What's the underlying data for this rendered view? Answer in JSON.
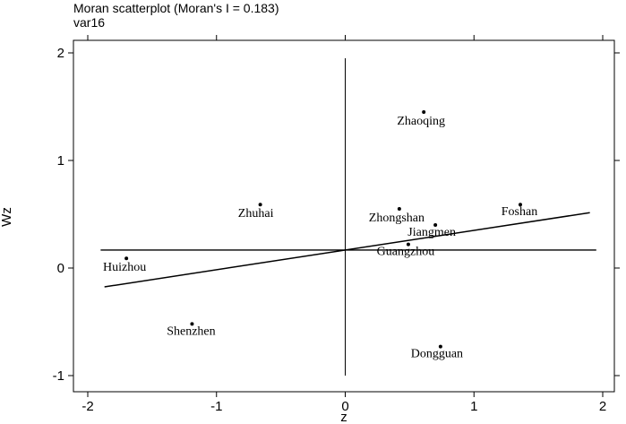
{
  "chart_data": {
    "type": "scatter",
    "title": "Moran scatterplot (Moran's I = 0.183)",
    "subtitle": "var16",
    "xlabel": "z",
    "ylabel": "Wz",
    "xlim": [
      -2.05,
      2.05
    ],
    "ylim": [
      -1.1,
      2.1
    ],
    "xticks": [
      -2,
      -1,
      0,
      1,
      2
    ],
    "yticks": [
      -1,
      0,
      1,
      2
    ],
    "xtick_labels": [
      "-2",
      "-1",
      "0",
      "1",
      "2"
    ],
    "ytick_labels": [
      "-1",
      "0",
      "1",
      "2"
    ],
    "grid": false,
    "points": [
      {
        "label": "Zhaoqing",
        "x": 0.61,
        "y": 1.45
      },
      {
        "label": "Zhuhai",
        "x": -0.66,
        "y": 0.59
      },
      {
        "label": "Zhongshan",
        "x": 0.42,
        "y": 0.55
      },
      {
        "label": "Foshan",
        "x": 1.36,
        "y": 0.59
      },
      {
        "label": "Jiangmen",
        "x": 0.7,
        "y": 0.4
      },
      {
        "label": "Guangzhou",
        "x": 0.49,
        "y": 0.22
      },
      {
        "label": "Huizhou",
        "x": -1.7,
        "y": 0.09
      },
      {
        "label": "Shenzhen",
        "x": -1.19,
        "y": -0.52
      },
      {
        "label": "Dongguan",
        "x": 0.74,
        "y": -0.73
      }
    ],
    "fit_line": {
      "slope": 0.183,
      "intercept": 0.167,
      "x_range": [
        -1.87,
        1.9
      ]
    },
    "mean_lines": {
      "x": 0,
      "y": 0.167
    }
  }
}
